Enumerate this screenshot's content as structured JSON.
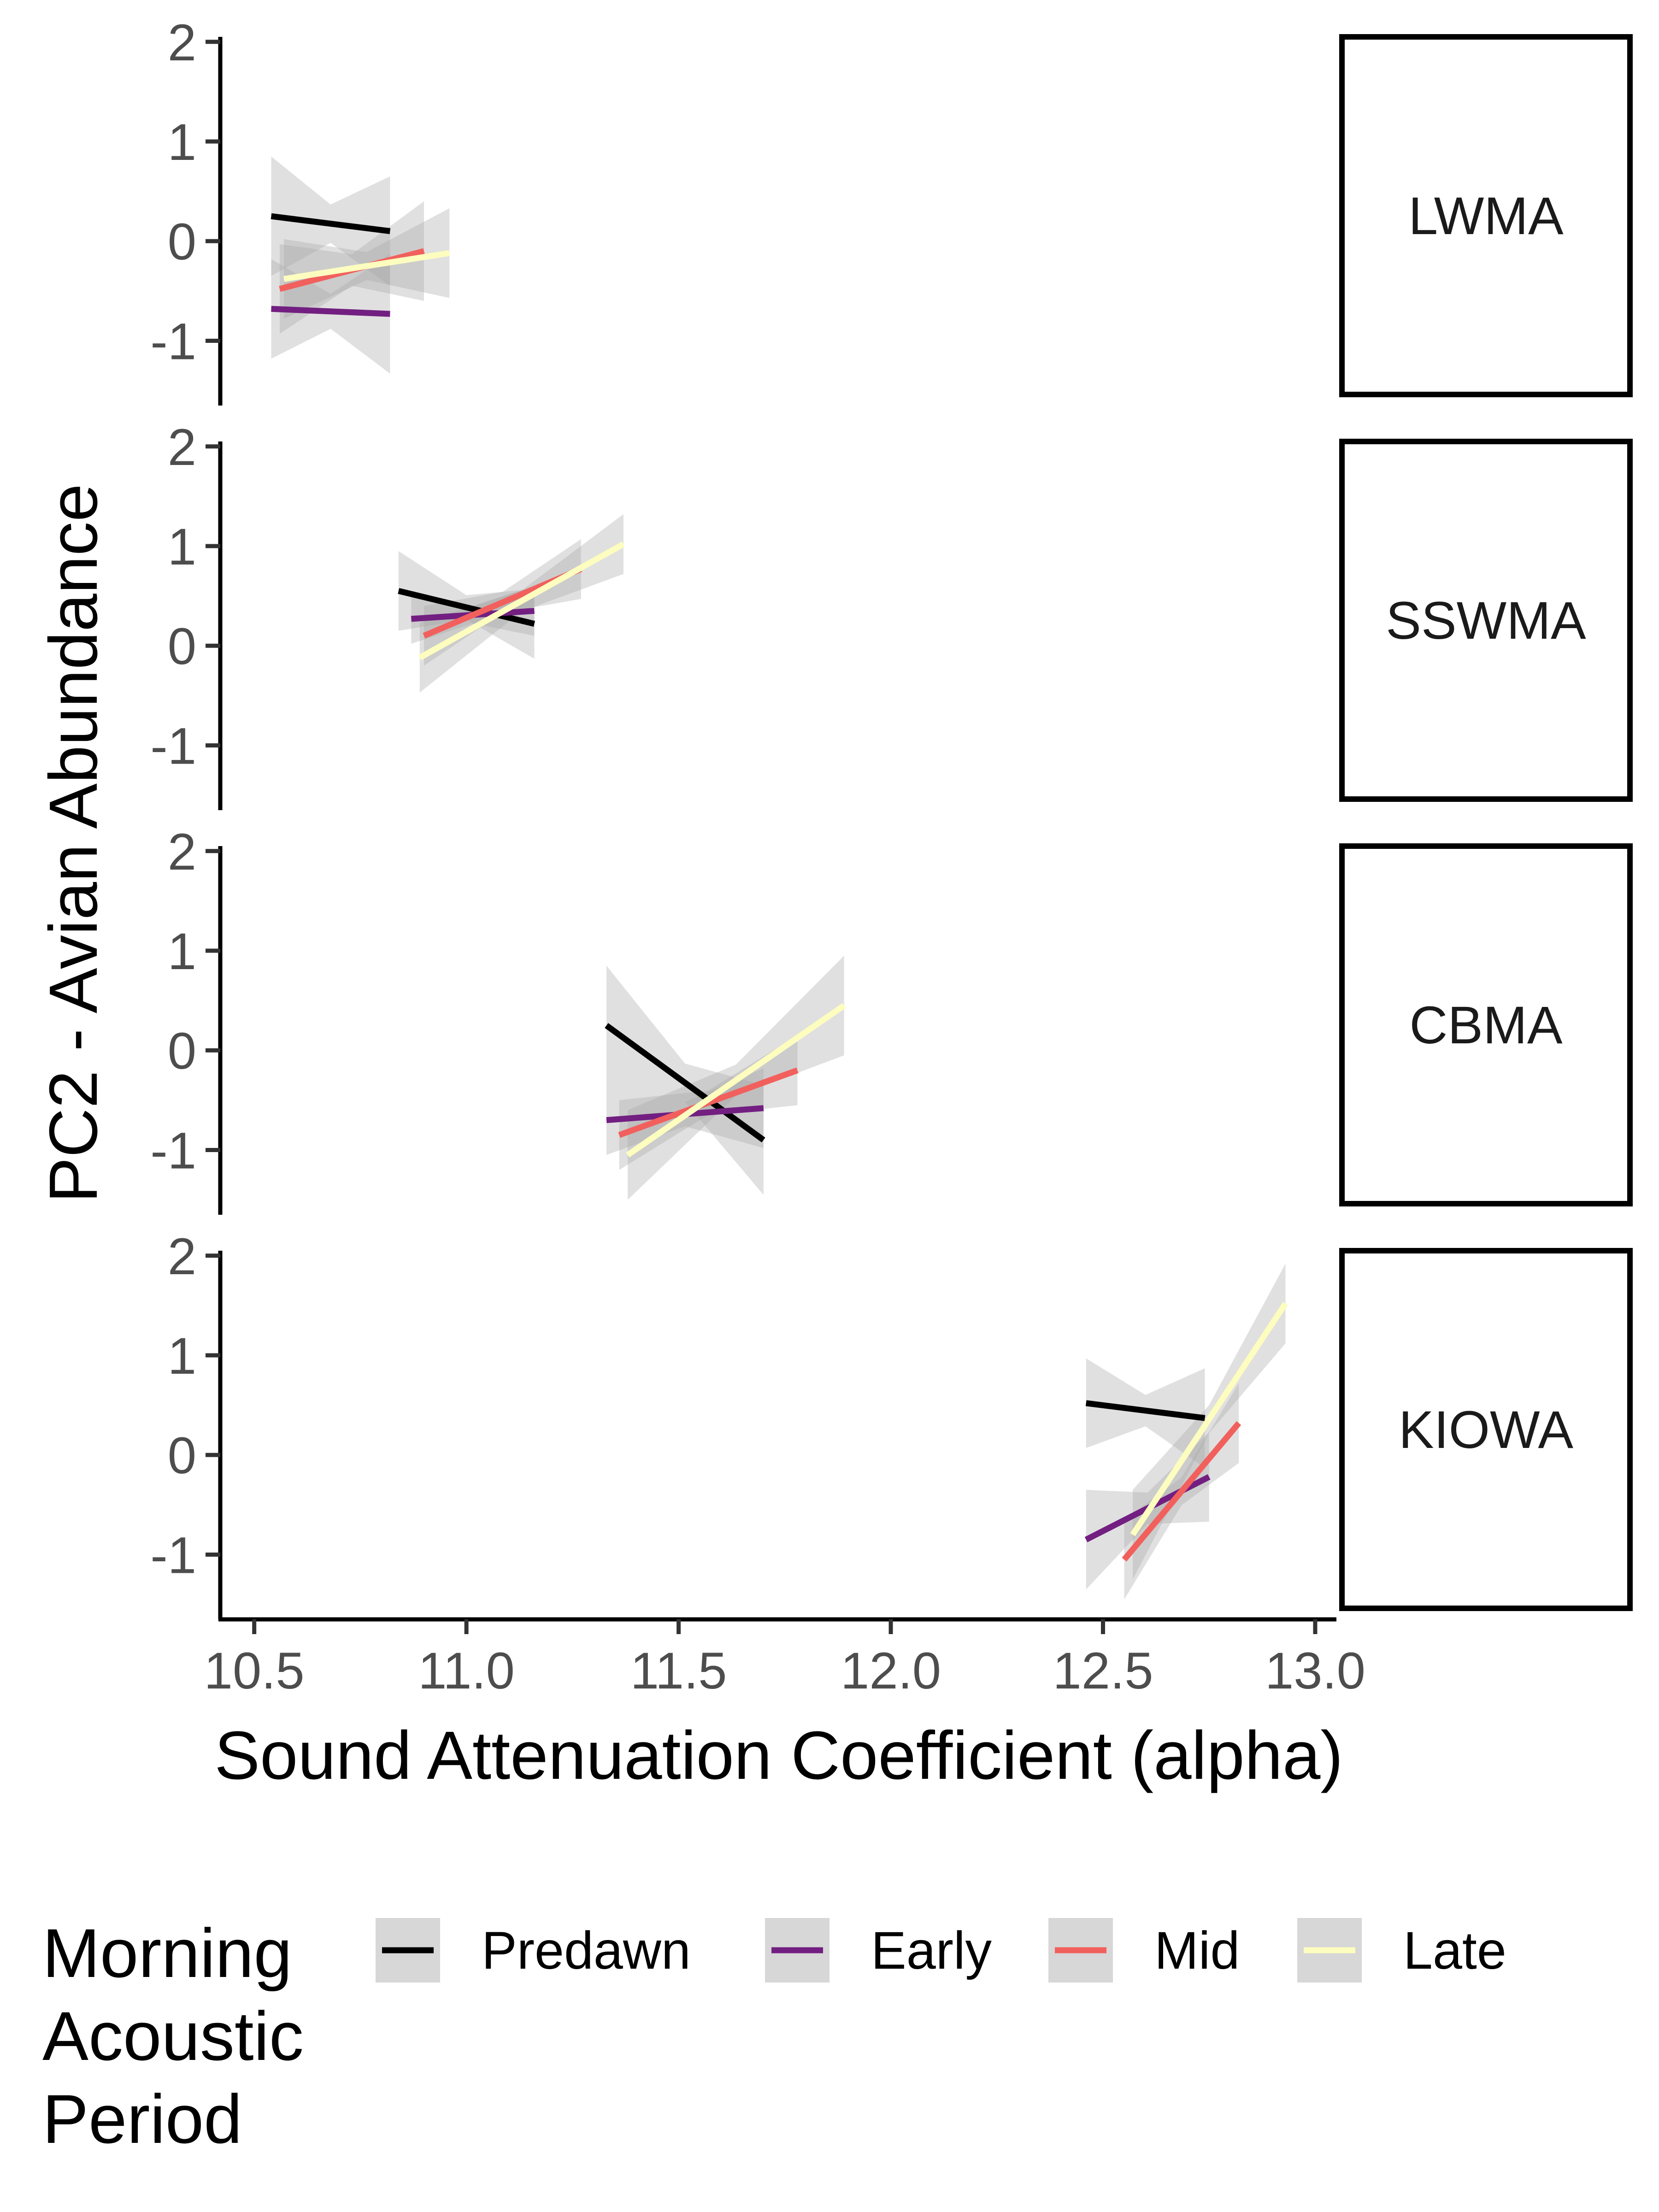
{
  "chart_data": {
    "type": "line",
    "xlabel": "Sound Attenuation Coefficient (alpha)",
    "ylabel": "PC2 - Avian Abundance",
    "xlim": [
      10.42,
      13.05
    ],
    "ylim": [
      -1.65,
      2.05
    ],
    "xticks": [
      10.5,
      11.0,
      11.5,
      12.0,
      12.5,
      13.0
    ],
    "xtick_labels": [
      "10.5",
      "11.0",
      "11.5",
      "12.0",
      "12.5",
      "13.0"
    ],
    "yticks": [
      -1,
      0,
      1,
      2
    ],
    "ytick_labels": [
      "-1",
      "0",
      "1",
      "2"
    ],
    "grid": false,
    "legend": {
      "title": "Morning Acoustic Period",
      "title_lines": [
        "Morning",
        "Acoustic",
        "Period"
      ],
      "position": "bottom",
      "entries": [
        "Predawn",
        "Early",
        "Mid",
        "Late"
      ]
    },
    "series_colors": {
      "Predawn": "#000000",
      "Early": "#721f81",
      "Mid": "#f1605d",
      "Late": "#fcfdbf"
    },
    "ribbon_color": "#a6a6a6",
    "panels": [
      {
        "label": "LWMA",
        "series": [
          {
            "name": "Predawn",
            "x": [
              10.54,
              10.82
            ],
            "y": [
              0.25,
              0.1
            ],
            "ci_width": [
              0.6,
              0.55
            ]
          },
          {
            "name": "Early",
            "x": [
              10.54,
              10.82
            ],
            "y": [
              -0.68,
              -0.73
            ],
            "ci_width": [
              0.5,
              0.6
            ]
          },
          {
            "name": "Mid",
            "x": [
              10.56,
              10.9
            ],
            "y": [
              -0.48,
              -0.1
            ],
            "ci_width": [
              0.45,
              0.5
            ]
          },
          {
            "name": "Late",
            "x": [
              10.57,
              10.96
            ],
            "y": [
              -0.38,
              -0.12
            ],
            "ci_width": [
              0.4,
              0.45
            ]
          }
        ]
      },
      {
        "label": "SSWMA",
        "series": [
          {
            "name": "Predawn",
            "x": [
              10.84,
              11.16
            ],
            "y": [
              0.55,
              0.22
            ],
            "ci_width": [
              0.4,
              0.35
            ]
          },
          {
            "name": "Early",
            "x": [
              10.87,
              11.16
            ],
            "y": [
              0.27,
              0.35
            ],
            "ci_width": [
              0.25,
              0.25
            ]
          },
          {
            "name": "Mid",
            "x": [
              10.9,
              11.27
            ],
            "y": [
              0.1,
              0.77
            ],
            "ci_width": [
              0.3,
              0.3
            ]
          },
          {
            "name": "Late",
            "x": [
              10.89,
              11.37
            ],
            "y": [
              -0.12,
              1.02
            ],
            "ci_width": [
              0.35,
              0.3
            ]
          }
        ]
      },
      {
        "label": "CBMA",
        "series": [
          {
            "name": "Predawn",
            "x": [
              11.33,
              11.7
            ],
            "y": [
              0.25,
              -0.9
            ],
            "ci_width": [
              0.6,
              0.55
            ]
          },
          {
            "name": "Early",
            "x": [
              11.33,
              11.7
            ],
            "y": [
              -0.7,
              -0.58
            ],
            "ci_width": [
              0.35,
              0.4
            ]
          },
          {
            "name": "Mid",
            "x": [
              11.36,
              11.78
            ],
            "y": [
              -0.85,
              -0.2
            ],
            "ci_width": [
              0.35,
              0.35
            ]
          },
          {
            "name": "Late",
            "x": [
              11.38,
              11.89
            ],
            "y": [
              -1.05,
              0.45
            ],
            "ci_width": [
              0.45,
              0.5
            ]
          }
        ]
      },
      {
        "label": "KIOWA",
        "series": [
          {
            "name": "Predawn",
            "x": [
              12.46,
              12.74
            ],
            "y": [
              0.52,
              0.37
            ],
            "ci_width": [
              0.45,
              0.5
            ]
          },
          {
            "name": "Early",
            "x": [
              12.46,
              12.75
            ],
            "y": [
              -0.85,
              -0.22
            ],
            "ci_width": [
              0.5,
              0.45
            ]
          },
          {
            "name": "Mid",
            "x": [
              12.55,
              12.82
            ],
            "y": [
              -1.05,
              0.32
            ],
            "ci_width": [
              0.4,
              0.4
            ]
          },
          {
            "name": "Late",
            "x": [
              12.57,
              12.93
            ],
            "y": [
              -0.8,
              1.52
            ],
            "ci_width": [
              0.45,
              0.4
            ]
          }
        ]
      }
    ]
  }
}
